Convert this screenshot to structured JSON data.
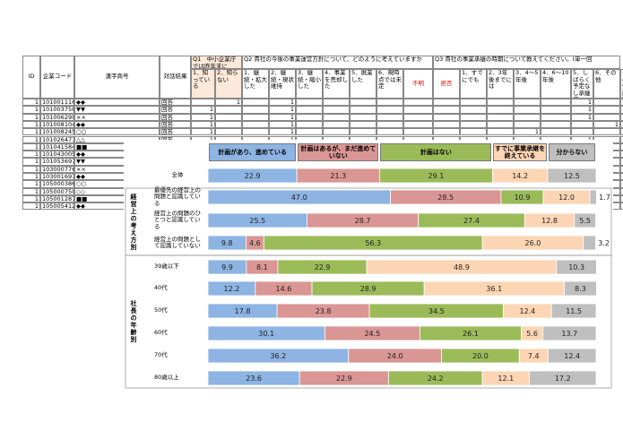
{
  "sheet": {
    "columns": [
      "ID",
      "企業コード",
      "漢字商号",
      "対話結果"
    ],
    "question_headers": [
      "Q1　中小企業庁では昨年末に",
      "Q2 貴社の今後の事業運営方針について、どのように考えていますか",
      "Q3 貴社の事業承継の時期について教えてください。(単一回"
    ],
    "subheaders": [
      "1．知っている",
      "2．知らない",
      "1．継続・拡大した",
      "2．継続・現状維持",
      "3．継続・縮小した",
      "4．事業を売却した",
      "5．廃業した",
      "6．現時点では未定",
      "不明",
      "拒否",
      "1．すでにでも",
      "2．3年後までには",
      "3．4～5年後",
      "4．6～10年後",
      "5．しばらく予定なし承継済",
      "6．その他",
      "その他内容"
    ],
    "rows": [
      [
        1,
        "1010011161",
        "◆◆",
        "回答",
        null,
        1,
        null,
        1,
        null,
        null,
        null,
        null,
        null,
        null,
        null,
        null,
        null,
        null,
        1,
        null,
        null
      ],
      [
        1,
        "1010037588",
        "▼▼",
        "回答",
        1,
        null,
        null,
        1,
        null,
        null,
        null,
        null,
        null,
        null,
        null,
        null,
        null,
        null,
        1,
        null,
        null
      ],
      [
        1,
        "1010062901",
        "××",
        "回答",
        1,
        null,
        null,
        1,
        null,
        null,
        null,
        null,
        null,
        null,
        null,
        null,
        null,
        null,
        1,
        null,
        null
      ],
      [
        1,
        "1010081049",
        "◆◆",
        "回答",
        1,
        null,
        null,
        1,
        null,
        null,
        null,
        null,
        null,
        null,
        null,
        null,
        null,
        null,
        null,
        1,
        "12年後"
      ],
      [
        1,
        "1010082458",
        "○○",
        "回答",
        1,
        null,
        null,
        1,
        null,
        null,
        null,
        null,
        null,
        null,
        null,
        null,
        1,
        null,
        null,
        null,
        null
      ],
      [
        1,
        "1010264719",
        "△△",
        "回答",
        1,
        null,
        null,
        1,
        null,
        null,
        null,
        null,
        null,
        null,
        null,
        null,
        null,
        null,
        1,
        null,
        null
      ],
      [
        1,
        "1010415841",
        "■■",
        "回答",
        1,
        null,
        null,
        1,
        null,
        null,
        null,
        null,
        null,
        null,
        null,
        null,
        null,
        null,
        null,
        null,
        null
      ],
      [
        1,
        "1010430052",
        "◆◆",
        null,
        null,
        null,
        null,
        null,
        null,
        null,
        null,
        null,
        null,
        null,
        null,
        null,
        null,
        null,
        null,
        null,
        null
      ],
      [
        1,
        "1010536971",
        "▼▼",
        null,
        null,
        null,
        null,
        null,
        null,
        null,
        null,
        null,
        null,
        null,
        null,
        null,
        null,
        null,
        null,
        null,
        null
      ],
      [
        1,
        "1030007764",
        "××",
        null,
        null,
        null,
        null,
        null,
        null,
        null,
        null,
        null,
        null,
        null,
        null,
        null,
        null,
        null,
        null,
        null,
        null
      ],
      [
        1,
        "1030016979",
        "◆◆",
        null,
        null,
        null,
        null,
        null,
        null,
        null,
        null,
        null,
        null,
        null,
        null,
        null,
        null,
        null,
        null,
        null,
        null
      ],
      [
        1,
        "1050003861",
        "○○",
        null,
        null,
        null,
        null,
        null,
        null,
        null,
        null,
        null,
        null,
        null,
        null,
        null,
        null,
        null,
        null,
        null,
        null
      ],
      [
        1,
        "1050007501",
        "◇◇",
        null,
        null,
        null,
        null,
        null,
        null,
        null,
        null,
        null,
        null,
        null,
        null,
        null,
        null,
        null,
        null,
        null,
        null
      ],
      [
        1,
        "1050012879",
        "■■",
        null,
        null,
        null,
        null,
        null,
        null,
        null,
        null,
        null,
        null,
        null,
        null,
        null,
        null,
        null,
        null,
        null,
        null
      ],
      [
        1,
        "1050054126",
        "◆◆",
        null,
        null,
        null,
        null,
        null,
        null,
        null,
        null,
        null,
        null,
        null,
        null,
        null,
        null,
        null,
        null,
        null,
        null
      ]
    ]
  },
  "chart_data": {
    "type": "stacked_barh",
    "categories": [
      "全体",
      "最優先の経営上の問題と認識している",
      "経営上の問題のひとつと認識している",
      "経営上の問題として認識していない",
      "39歳以下",
      "40代",
      "50代",
      "60代",
      "70代",
      "80歳以上"
    ],
    "groups": [
      "経営上の考え方別",
      "社長の年齢別"
    ],
    "xlim": [
      0,
      100
    ],
    "series": [
      {
        "name": "計画があり、進めている",
        "color": "#8db4e2",
        "values": [
          22.9,
          47.0,
          25.5,
          9.8,
          9.9,
          12.2,
          17.8,
          30.1,
          36.2,
          23.6
        ]
      },
      {
        "name": "計画はあるが、まだ進めていない",
        "color": "#da9694",
        "values": [
          21.3,
          28.5,
          28.7,
          4.6,
          8.1,
          14.6,
          23.8,
          24.5,
          24.0,
          22.9
        ]
      },
      {
        "name": "計画はない",
        "color": "#9bbb59",
        "values": [
          29.1,
          10.9,
          27.4,
          56.3,
          22.9,
          28.9,
          34.5,
          26.1,
          20.0,
          24.2
        ]
      },
      {
        "name": "すでに事業承継を終えている",
        "color": "#fcd5b4",
        "values": [
          14.2,
          12.0,
          12.8,
          26.0,
          48.9,
          36.1,
          12.4,
          5.6,
          7.4,
          12.1
        ]
      },
      {
        "name": "分からない",
        "color": "#bfbfbf",
        "values": [
          12.5,
          1.7,
          5.5,
          3.2,
          10.3,
          8.3,
          11.5,
          13.7,
          12.4,
          17.2
        ]
      }
    ],
    "value_labels": [
      [
        "22.9",
        "47.0",
        "25.5",
        "9.8",
        "9.9",
        "12.2",
        "17.8",
        "30.1",
        "36.2",
        "23.6"
      ],
      [
        "21.3",
        "28.5",
        "28.7",
        "4.6",
        "8.1",
        "14.6",
        "23.8",
        "24.5",
        "24.0",
        "22.9"
      ],
      [
        "29.1",
        "10.9",
        "27.4",
        "56.3",
        "22.9",
        "28.9",
        "34.5",
        "26.1",
        "20.0",
        "24.2"
      ],
      [
        "14.2",
        "12.0",
        "12.8",
        "26.0",
        "48.9",
        "36.1",
        "12.4",
        "5.6",
        "7.4",
        "12.1"
      ],
      [
        "12.5",
        "1.7",
        "5.5",
        "3.2",
        "10.3",
        "8.3",
        "11.5",
        "13.7",
        "12.4",
        "17.2"
      ]
    ]
  }
}
